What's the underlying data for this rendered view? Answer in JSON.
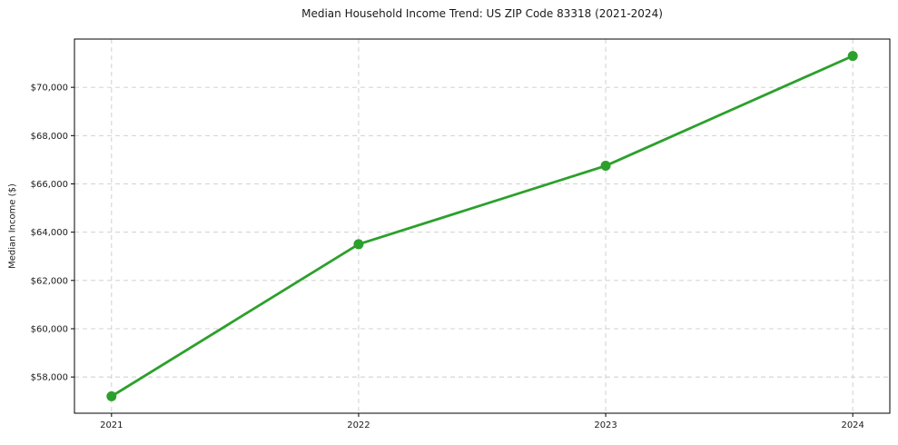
{
  "colors": {
    "line": "#2ca02c",
    "marker": "#2ca02c",
    "grid": "#cccccc",
    "frame": "#000000",
    "text": "#1a1a1a",
    "background": "#ffffff"
  },
  "chart_data": {
    "type": "line",
    "title": "Median Household Income Trend: US ZIP Code 83318 (2021-2024)",
    "xlabel": "",
    "ylabel": "Median Income ($)",
    "x": [
      2021,
      2022,
      2023,
      2024
    ],
    "categories": [
      "2021",
      "2022",
      "2023",
      "2024"
    ],
    "series": [
      {
        "name": "Median Household Income",
        "values": [
          57200,
          63500,
          66750,
          71300
        ]
      }
    ],
    "xlim": [
      2020.85,
      2024.15
    ],
    "ylim": [
      56500,
      72000
    ],
    "xticks": {
      "values": [
        2021,
        2022,
        2023,
        2024
      ],
      "labels": [
        "2021",
        "2022",
        "2023",
        "2024"
      ]
    },
    "yticks": {
      "values": [
        58000,
        60000,
        62000,
        64000,
        66000,
        68000,
        70000
      ],
      "labels": [
        "$58,000",
        "$60,000",
        "$62,000",
        "$64,000",
        "$66,000",
        "$68,000",
        "$70,000"
      ]
    },
    "grid": true,
    "grid_style": "dashed",
    "legend": "none",
    "marker": "circle"
  }
}
